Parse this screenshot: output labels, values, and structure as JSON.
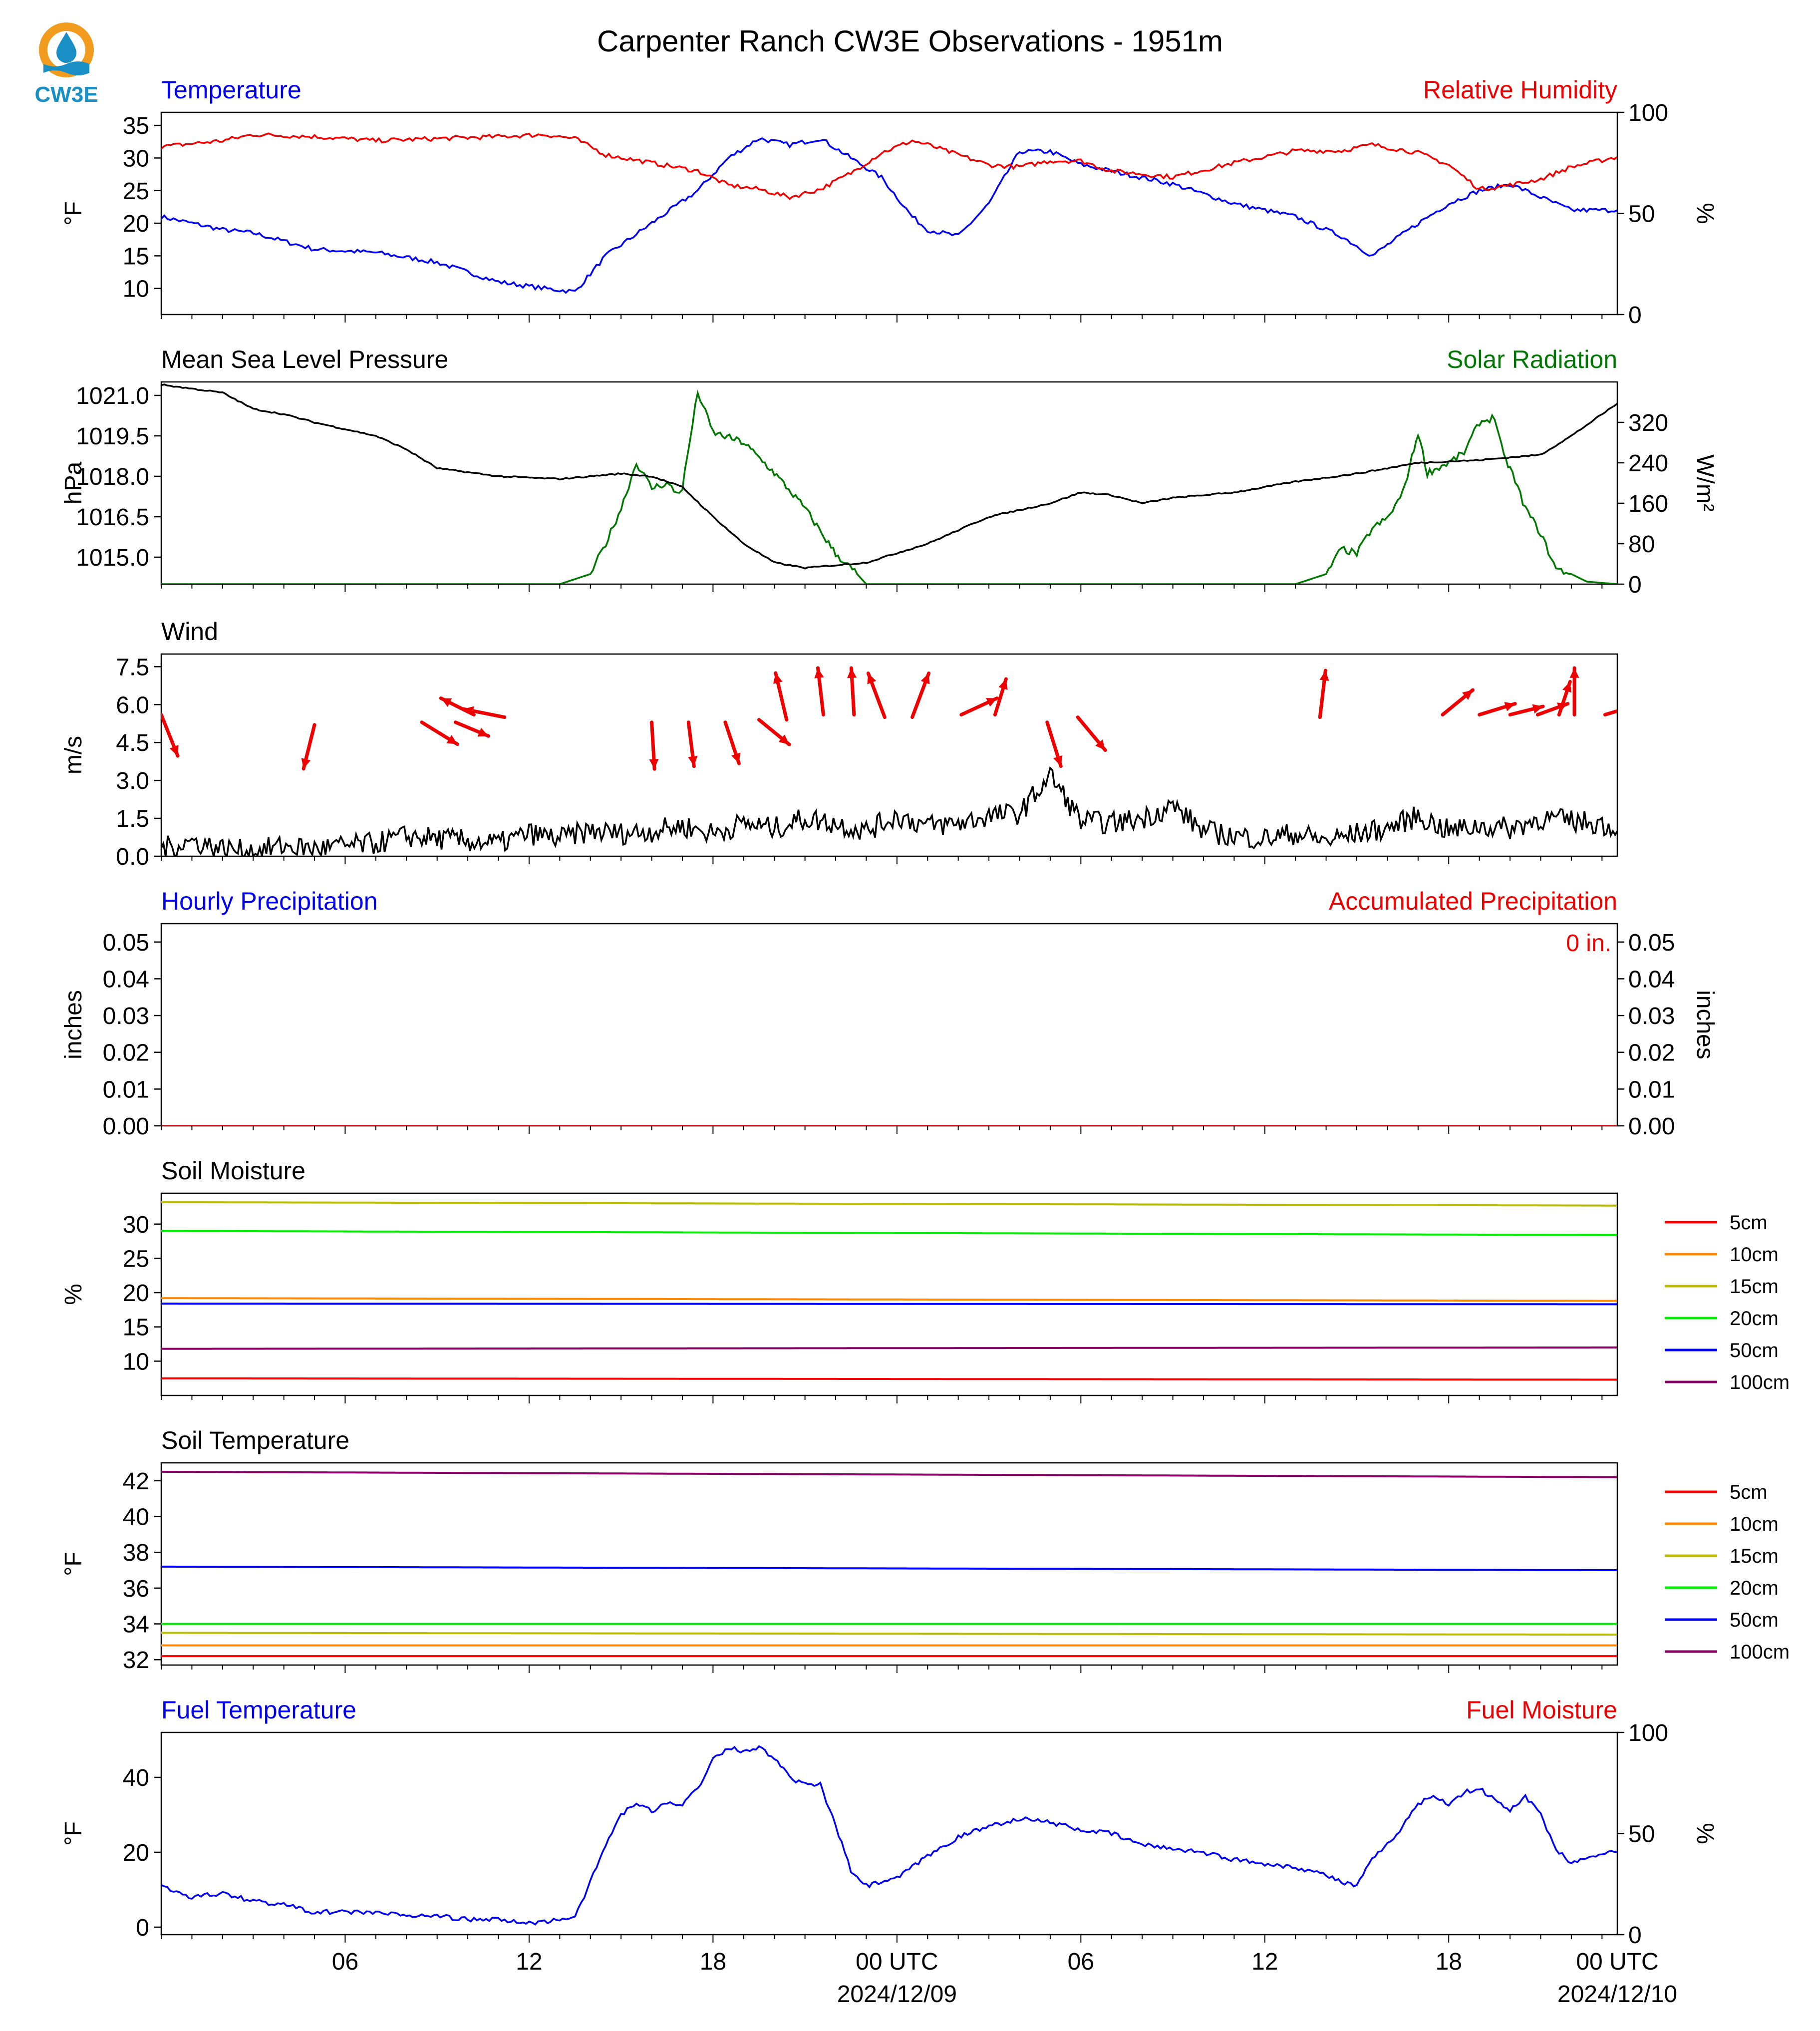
{
  "title": "Carpenter Ranch CW3E Observations - 1951m",
  "logo": {
    "text": "CW3E",
    "colors": {
      "ring": "#f29c1f",
      "drop": "#1a8fc5",
      "text": "#1a8fc5"
    }
  },
  "colors": {
    "blue": "#0000ee",
    "red": "#ee0000",
    "green": "#007700",
    "black": "#000000",
    "soil": {
      "5cm": "#ff0000",
      "10cm": "#ff8800",
      "15cm": "#bbbb00",
      "20cm": "#00ee00",
      "50cm": "#0000ff",
      "100cm": "#880066"
    }
  },
  "time_axis": {
    "ticks": [
      "06",
      "12",
      "18",
      "00 UTC",
      "06",
      "12",
      "18",
      "00 UTC"
    ],
    "dates": [
      "2024/12/09",
      "2024/12/10"
    ]
  },
  "chart_data": [
    {
      "id": "temp_rh",
      "type": "line",
      "title_left": "Temperature",
      "title_right": "Relative Humidity",
      "ylabel": "°F",
      "ylabel_right": "%",
      "ylim": [
        6,
        37
      ],
      "ylim_right": [
        0,
        100
      ],
      "yticks": [
        10,
        15,
        20,
        25,
        30,
        35
      ],
      "yticks_right": [
        0,
        50,
        100
      ],
      "x_hours": [
        1,
        3,
        4,
        6,
        8,
        10,
        12,
        13.5,
        14.5,
        15.5,
        17,
        18.5,
        19.5,
        20.5,
        21.5,
        22.5,
        23.5,
        24.5,
        25.5,
        26,
        27,
        28,
        29,
        30,
        31,
        32,
        34,
        36,
        38,
        39.5,
        40.5,
        42,
        43,
        44,
        45,
        46,
        47,
        48.5
      ],
      "series": [
        {
          "name": "Temperature",
          "axis": "left",
          "color": "blue",
          "values": [
            21,
            19,
            18.5,
            16,
            15.5,
            14,
            11,
            10,
            9.5,
            15,
            20,
            25,
            30,
            33,
            32,
            33,
            30,
            27,
            21,
            19,
            18,
            23,
            31,
            31,
            29,
            28,
            26,
            23,
            21,
            18,
            15,
            20,
            23,
            25,
            26,
            24,
            22,
            22
          ]
        },
        {
          "name": "Relative Humidity",
          "axis": "right",
          "color": "red",
          "values": [
            83,
            86,
            89,
            88,
            86,
            87,
            88,
            89,
            87,
            79,
            75,
            71,
            64,
            62,
            58,
            62,
            70,
            80,
            86,
            84,
            79,
            74,
            73,
            76,
            76,
            71,
            68,
            75,
            81,
            81,
            84,
            80,
            74,
            62,
            64,
            67,
            73,
            78
          ]
        }
      ]
    },
    {
      "id": "pressure_solar",
      "type": "line",
      "title_left": "Mean Sea Level Pressure",
      "title_right": "Solar Radiation",
      "ylabel": "hPa",
      "ylabel_right": "W/m²",
      "ylim": [
        1014.0,
        1021.5
      ],
      "ylim_right": [
        0,
        400
      ],
      "yticks": [
        1015.0,
        1016.5,
        1018.0,
        1019.5,
        1021.0
      ],
      "yticks_right": [
        0,
        80,
        160,
        240,
        320
      ],
      "x_hours": [
        1,
        3,
        4,
        5,
        6,
        8,
        9,
        10,
        12,
        14,
        15,
        16,
        17,
        18,
        19,
        20,
        21,
        22,
        24,
        26,
        28,
        30,
        31,
        32,
        33,
        34,
        36,
        38,
        40,
        42,
        44,
        46,
        47,
        48.5
      ],
      "series": [
        {
          "name": "Mean Sea Level Pressure",
          "axis": "left",
          "color": "black",
          "values": [
            1021.4,
            1021.1,
            1020.5,
            1020.3,
            1020.0,
            1019.5,
            1019.0,
            1018.3,
            1018.0,
            1017.9,
            1018.0,
            1018.1,
            1018.0,
            1017.6,
            1016.5,
            1015.5,
            1014.8,
            1014.6,
            1014.8,
            1015.5,
            1016.5,
            1017.0,
            1017.4,
            1017.3,
            1017.0,
            1017.2,
            1017.4,
            1017.8,
            1018.1,
            1018.5,
            1018.6,
            1018.8,
            1019.5,
            1020.7
          ]
        }
      ],
      "solar": {
        "name": "Solar Radiation",
        "axis": "right",
        "color": "green",
        "x_hours": [
          1,
          14,
          15,
          15.5,
          16,
          16.5,
          17,
          17.5,
          17.8,
          18,
          18.5,
          19,
          20,
          21,
          22,
          23,
          23.7,
          24,
          38,
          39,
          39.5,
          40,
          40.5,
          41,
          41.5,
          41.8,
          42,
          42.3,
          43,
          43.5,
          44,
          44.5,
          44.8,
          45,
          45.5,
          46,
          46.5,
          47,
          47.5,
          48.5
        ],
        "values": [
          0,
          0,
          20,
          80,
          150,
          240,
          190,
          200,
          180,
          190,
          380,
          300,
          280,
          220,
          150,
          60,
          20,
          0,
          0,
          20,
          70,
          60,
          110,
          130,
          180,
          250,
          300,
          220,
          240,
          260,
          320,
          330,
          250,
          230,
          150,
          100,
          30,
          20,
          5,
          0
        ]
      }
    },
    {
      "id": "wind",
      "type": "line",
      "title_left": "Wind",
      "ylabel": "m/s",
      "ylim": [
        0,
        8
      ],
      "yticks": [
        0.0,
        1.5,
        3.0,
        4.5,
        6.0,
        7.5
      ],
      "x_hours": [
        1,
        2,
        3,
        4,
        5,
        6,
        7,
        8,
        9,
        10,
        11,
        12,
        13,
        14,
        15,
        16,
        17,
        18,
        19,
        20,
        21,
        22,
        23,
        24,
        25,
        26,
        27,
        28,
        29,
        30,
        31,
        32,
        33,
        34,
        35,
        36,
        37,
        38,
        39,
        40,
        41,
        42,
        43,
        44,
        45,
        46,
        47,
        48,
        48.5
      ],
      "series": [
        {
          "name": "Wind",
          "axis": "left",
          "color": "black",
          "values": [
            0.3,
            0.6,
            0.3,
            0.2,
            0.4,
            0.3,
            0.4,
            0.5,
            0.8,
            0.7,
            0.6,
            0.5,
            0.9,
            0.7,
            1.0,
            0.9,
            1.0,
            1.2,
            0.9,
            1.3,
            1.1,
            1.5,
            1.3,
            1.0,
            1.6,
            1.2,
            1.3,
            1.6,
            1.7,
            3.2,
            1.4,
            1.3,
            1.5,
            2.0,
            1.0,
            0.8,
            0.7,
            0.9,
            0.6,
            0.9,
            1.1,
            1.6,
            1.0,
            1.2,
            1.1,
            1.5,
            1.4,
            1.3,
            1.0
          ]
        }
      ],
      "arrows": {
        "color": "red",
        "note_units": "u/v in m/s",
        "items": [
          {
            "x": 1.0,
            "y": 5.6,
            "u": 0.6,
            "v": -1.5
          },
          {
            "x": 6.0,
            "y": 5.2,
            "u": -0.4,
            "v": -1.6
          },
          {
            "x": 9.5,
            "y": 5.3,
            "u": 1.3,
            "v": -0.8
          },
          {
            "x": 10.6,
            "y": 5.3,
            "u": 1.2,
            "v": -0.5
          },
          {
            "x": 11.2,
            "y": 5.6,
            "u": -1.2,
            "v": 0.6
          },
          {
            "x": 12.2,
            "y": 5.5,
            "u": -1.5,
            "v": 0.3
          },
          {
            "x": 17.0,
            "y": 5.3,
            "u": 0.1,
            "v": -1.7
          },
          {
            "x": 18.2,
            "y": 5.3,
            "u": 0.2,
            "v": -1.6
          },
          {
            "x": 19.4,
            "y": 5.3,
            "u": 0.5,
            "v": -1.5
          },
          {
            "x": 20.5,
            "y": 5.4,
            "u": 1.1,
            "v": -0.9
          },
          {
            "x": 21.4,
            "y": 5.4,
            "u": -0.4,
            "v": 1.7
          },
          {
            "x": 22.6,
            "y": 5.6,
            "u": -0.2,
            "v": 1.7
          },
          {
            "x": 23.6,
            "y": 5.6,
            "u": -0.1,
            "v": 1.7
          },
          {
            "x": 24.6,
            "y": 5.5,
            "u": -0.6,
            "v": 1.6
          },
          {
            "x": 25.5,
            "y": 5.5,
            "u": 0.6,
            "v": 1.6
          },
          {
            "x": 27.1,
            "y": 5.6,
            "u": 1.3,
            "v": 0.6
          },
          {
            "x": 28.2,
            "y": 5.6,
            "u": 0.4,
            "v": 1.3
          },
          {
            "x": 29.9,
            "y": 5.3,
            "u": 0.5,
            "v": -1.6
          },
          {
            "x": 30.9,
            "y": 5.5,
            "u": 1.0,
            "v": -1.2
          },
          {
            "x": 38.8,
            "y": 5.5,
            "u": 0.2,
            "v": 1.7
          },
          {
            "x": 42.8,
            "y": 5.6,
            "u": 1.1,
            "v": 0.9
          },
          {
            "x": 44.0,
            "y": 5.6,
            "u": 1.3,
            "v": 0.4
          },
          {
            "x": 45.0,
            "y": 5.6,
            "u": 1.2,
            "v": 0.3
          },
          {
            "x": 45.9,
            "y": 5.6,
            "u": 1.1,
            "v": 0.4
          },
          {
            "x": 46.6,
            "y": 5.6,
            "u": 0.4,
            "v": 1.2
          },
          {
            "x": 47.1,
            "y": 5.6,
            "u": 0.0,
            "v": 1.7
          },
          {
            "x": 48.1,
            "y": 5.6,
            "u": 1.0,
            "v": 0.3
          }
        ]
      }
    },
    {
      "id": "precip",
      "type": "line",
      "title_left": "Hourly Precipitation",
      "title_right": "Accumulated Precipitation",
      "ylabel": "inches",
      "ylabel_right": "inches",
      "ylim": [
        0,
        0.055
      ],
      "ylim_right": [
        0,
        0.055
      ],
      "yticks": [
        "0.00",
        "0.01",
        "0.02",
        "0.03",
        "0.04",
        "0.05"
      ],
      "yticks_right": [
        "0.00",
        "0.01",
        "0.02",
        "0.03",
        "0.04",
        "0.05"
      ],
      "annotation": "0 in.",
      "x_hours": [
        1,
        48.5
      ],
      "series": [
        {
          "name": "Hourly Precipitation",
          "axis": "left",
          "color": "blue",
          "values": [
            0,
            0
          ]
        },
        {
          "name": "Accumulated Precipitation",
          "axis": "right",
          "color": "red",
          "values": [
            0,
            0
          ]
        }
      ]
    },
    {
      "id": "soil_moisture",
      "type": "line",
      "title_left": "Soil Moisture",
      "ylabel": "%",
      "ylim": [
        5,
        34.5
      ],
      "yticks": [
        10,
        15,
        20,
        25,
        30
      ],
      "x_hours": [
        1,
        48.5
      ],
      "series": [
        {
          "name": "5cm",
          "color_key": "5cm",
          "values": [
            7.5,
            7.3
          ]
        },
        {
          "name": "10cm",
          "color_key": "10cm",
          "values": [
            19.2,
            18.8
          ]
        },
        {
          "name": "15cm",
          "color_key": "15cm",
          "values": [
            33.2,
            32.7
          ]
        },
        {
          "name": "20cm",
          "color_key": "20cm",
          "values": [
            29.0,
            28.4
          ]
        },
        {
          "name": "50cm",
          "color_key": "50cm",
          "values": [
            18.4,
            18.3
          ]
        },
        {
          "name": "100cm",
          "color_key": "100cm",
          "values": [
            11.8,
            12.0
          ]
        }
      ]
    },
    {
      "id": "soil_temperature",
      "type": "line",
      "title_left": "Soil Temperature",
      "ylabel": "°F",
      "ylim": [
        31.7,
        43.0
      ],
      "yticks": [
        32,
        34,
        36,
        38,
        40,
        42
      ],
      "x_hours": [
        1,
        48.5
      ],
      "series": [
        {
          "name": "5cm",
          "color_key": "5cm",
          "values": [
            32.2,
            32.2
          ]
        },
        {
          "name": "10cm",
          "color_key": "10cm",
          "values": [
            32.8,
            32.8
          ]
        },
        {
          "name": "15cm",
          "color_key": "15cm",
          "values": [
            33.5,
            33.4
          ]
        },
        {
          "name": "20cm",
          "color_key": "20cm",
          "values": [
            34.0,
            34.0
          ]
        },
        {
          "name": "50cm",
          "color_key": "50cm",
          "values": [
            37.2,
            37.0
          ]
        },
        {
          "name": "100cm",
          "color_key": "100cm",
          "values": [
            42.5,
            42.2
          ]
        }
      ]
    },
    {
      "id": "fuel",
      "type": "line",
      "title_left": "Fuel Temperature",
      "title_right": "Fuel Moisture",
      "ylabel": "°F",
      "ylabel_right": "%",
      "ylim": [
        -2,
        52
      ],
      "ylim_right": [
        0,
        100
      ],
      "yticks": [
        0,
        20,
        40
      ],
      "yticks_right": [
        0,
        50,
        100
      ],
      "x_hours": [
        1,
        2,
        3,
        4,
        5,
        6,
        7,
        8,
        9,
        10,
        11,
        12,
        13,
        14,
        14.5,
        15,
        15.5,
        16,
        16.5,
        17,
        17.5,
        18,
        18.5,
        19,
        19.5,
        20,
        20.5,
        21,
        21.5,
        22,
        22.5,
        23,
        23.5,
        24,
        25,
        26,
        27,
        28,
        29,
        30,
        31,
        32,
        33,
        34,
        35,
        36,
        37,
        38,
        39,
        39.5,
        40,
        40.5,
        41,
        41.5,
        42,
        42.5,
        43,
        43.5,
        44,
        44.5,
        45,
        45.5,
        46,
        46.5,
        47,
        48,
        48.5
      ],
      "series": [
        {
          "name": "Fuel Temperature",
          "axis": "left",
          "color": "blue",
          "values": [
            11,
            8,
            9,
            7,
            6,
            4,
            4,
            4,
            3,
            3,
            2,
            2,
            1,
            2,
            3,
            12,
            22,
            30,
            33,
            31,
            33,
            33,
            37,
            45,
            48,
            47,
            48,
            45,
            40,
            38,
            38,
            27,
            15,
            11,
            13,
            19,
            24,
            27,
            29,
            28,
            26,
            25,
            22,
            21,
            20,
            18,
            17,
            16,
            14,
            12,
            11,
            18,
            22,
            27,
            33,
            35,
            33,
            36,
            37,
            34,
            31,
            35,
            30,
            21,
            17,
            20,
            20
          ]
        }
      ]
    }
  ],
  "legends": {
    "soil_moisture": [
      "5cm",
      "10cm",
      "15cm",
      "20cm",
      "50cm",
      "100cm"
    ],
    "soil_temperature": [
      "5cm",
      "10cm",
      "15cm",
      "20cm",
      "50cm",
      "100cm"
    ]
  }
}
